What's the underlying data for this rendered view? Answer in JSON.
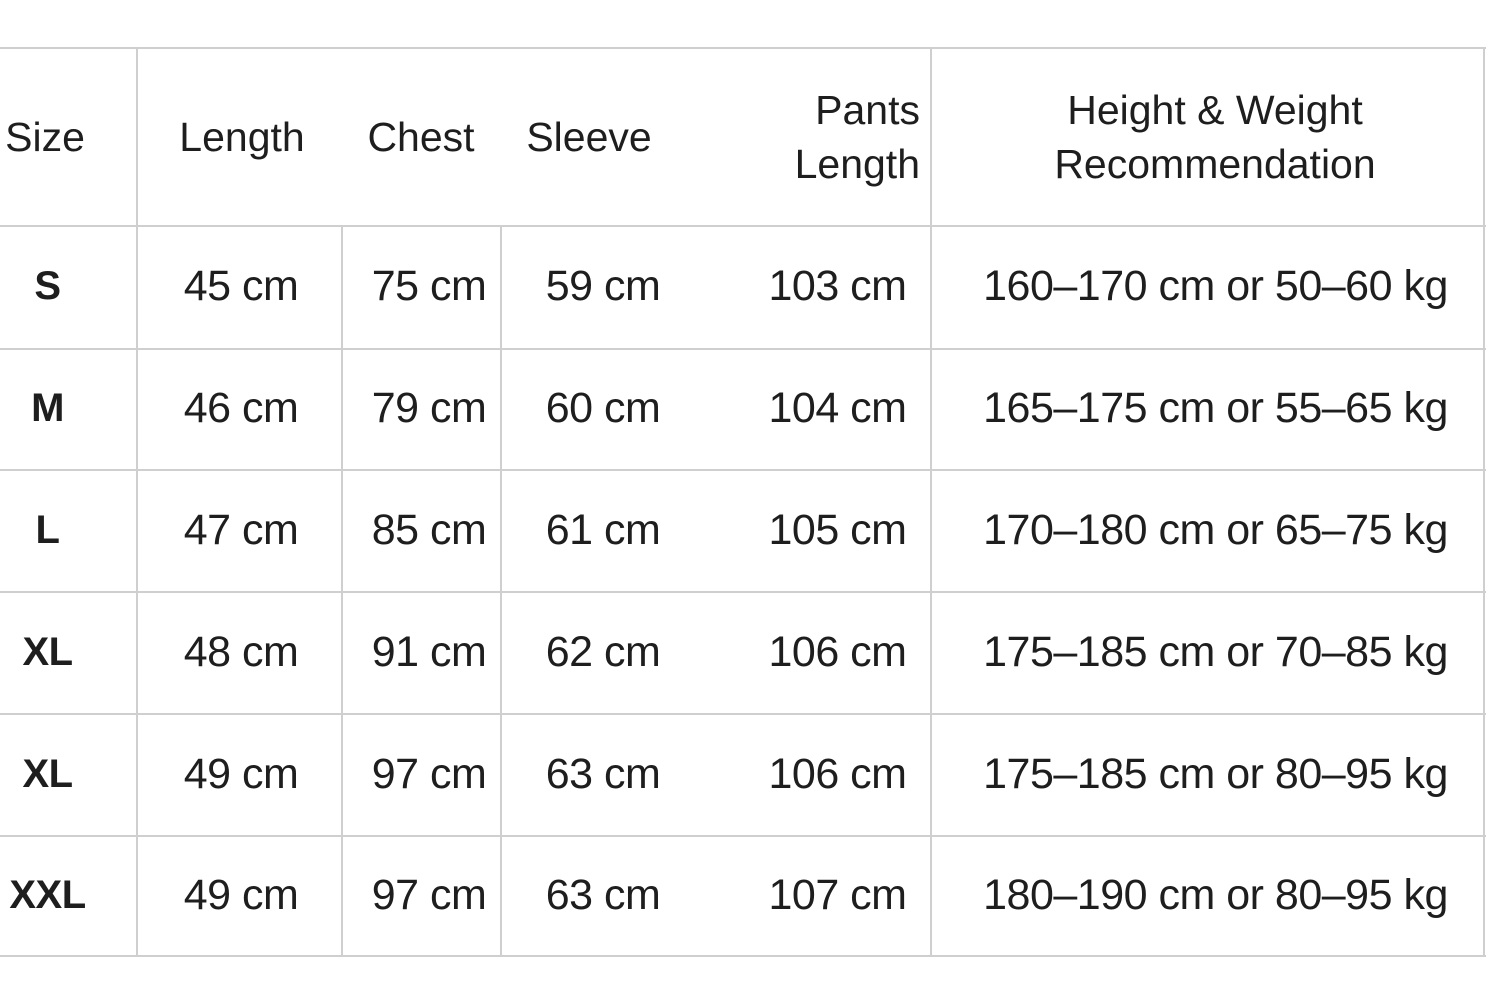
{
  "headers": {
    "size": "Size",
    "length": "Length",
    "chest": "Chest",
    "sleeve": "Sleeve",
    "pants_length": "Pants Length",
    "recommendation": "Height & Weight Recommendation"
  },
  "rows": [
    {
      "size": "S",
      "length": "45 cm",
      "chest": "75 cm",
      "sleeve": "59 cm",
      "pants_length": "103 cm",
      "recommendation": "160–170 cm or 50–60 kg"
    },
    {
      "size": "M",
      "length": "46 cm",
      "chest": "79 cm",
      "sleeve": "60 cm",
      "pants_length": "104 cm",
      "recommendation": "165–175 cm or 55–65 kg"
    },
    {
      "size": "L",
      "length": "47 cm",
      "chest": "85 cm",
      "sleeve": "61 cm",
      "pants_length": "105 cm",
      "recommendation": "170–180 cm or 65–75 kg"
    },
    {
      "size": "XL",
      "length": "48 cm",
      "chest": "91 cm",
      "sleeve": "62 cm",
      "pants_length": "106 cm",
      "recommendation": "175–185 cm or 70–85 kg"
    },
    {
      "size": "XL",
      "length": "49 cm",
      "chest": "97 cm",
      "sleeve": "63 cm",
      "pants_length": "106 cm",
      "recommendation": "175–185 cm or 80–95 kg"
    },
    {
      "size": "XXL",
      "length": "49 cm",
      "chest": "97 cm",
      "sleeve": "63 cm",
      "pants_length": "107 cm",
      "recommendation": "180–190 cm or 80–95 kg"
    }
  ]
}
